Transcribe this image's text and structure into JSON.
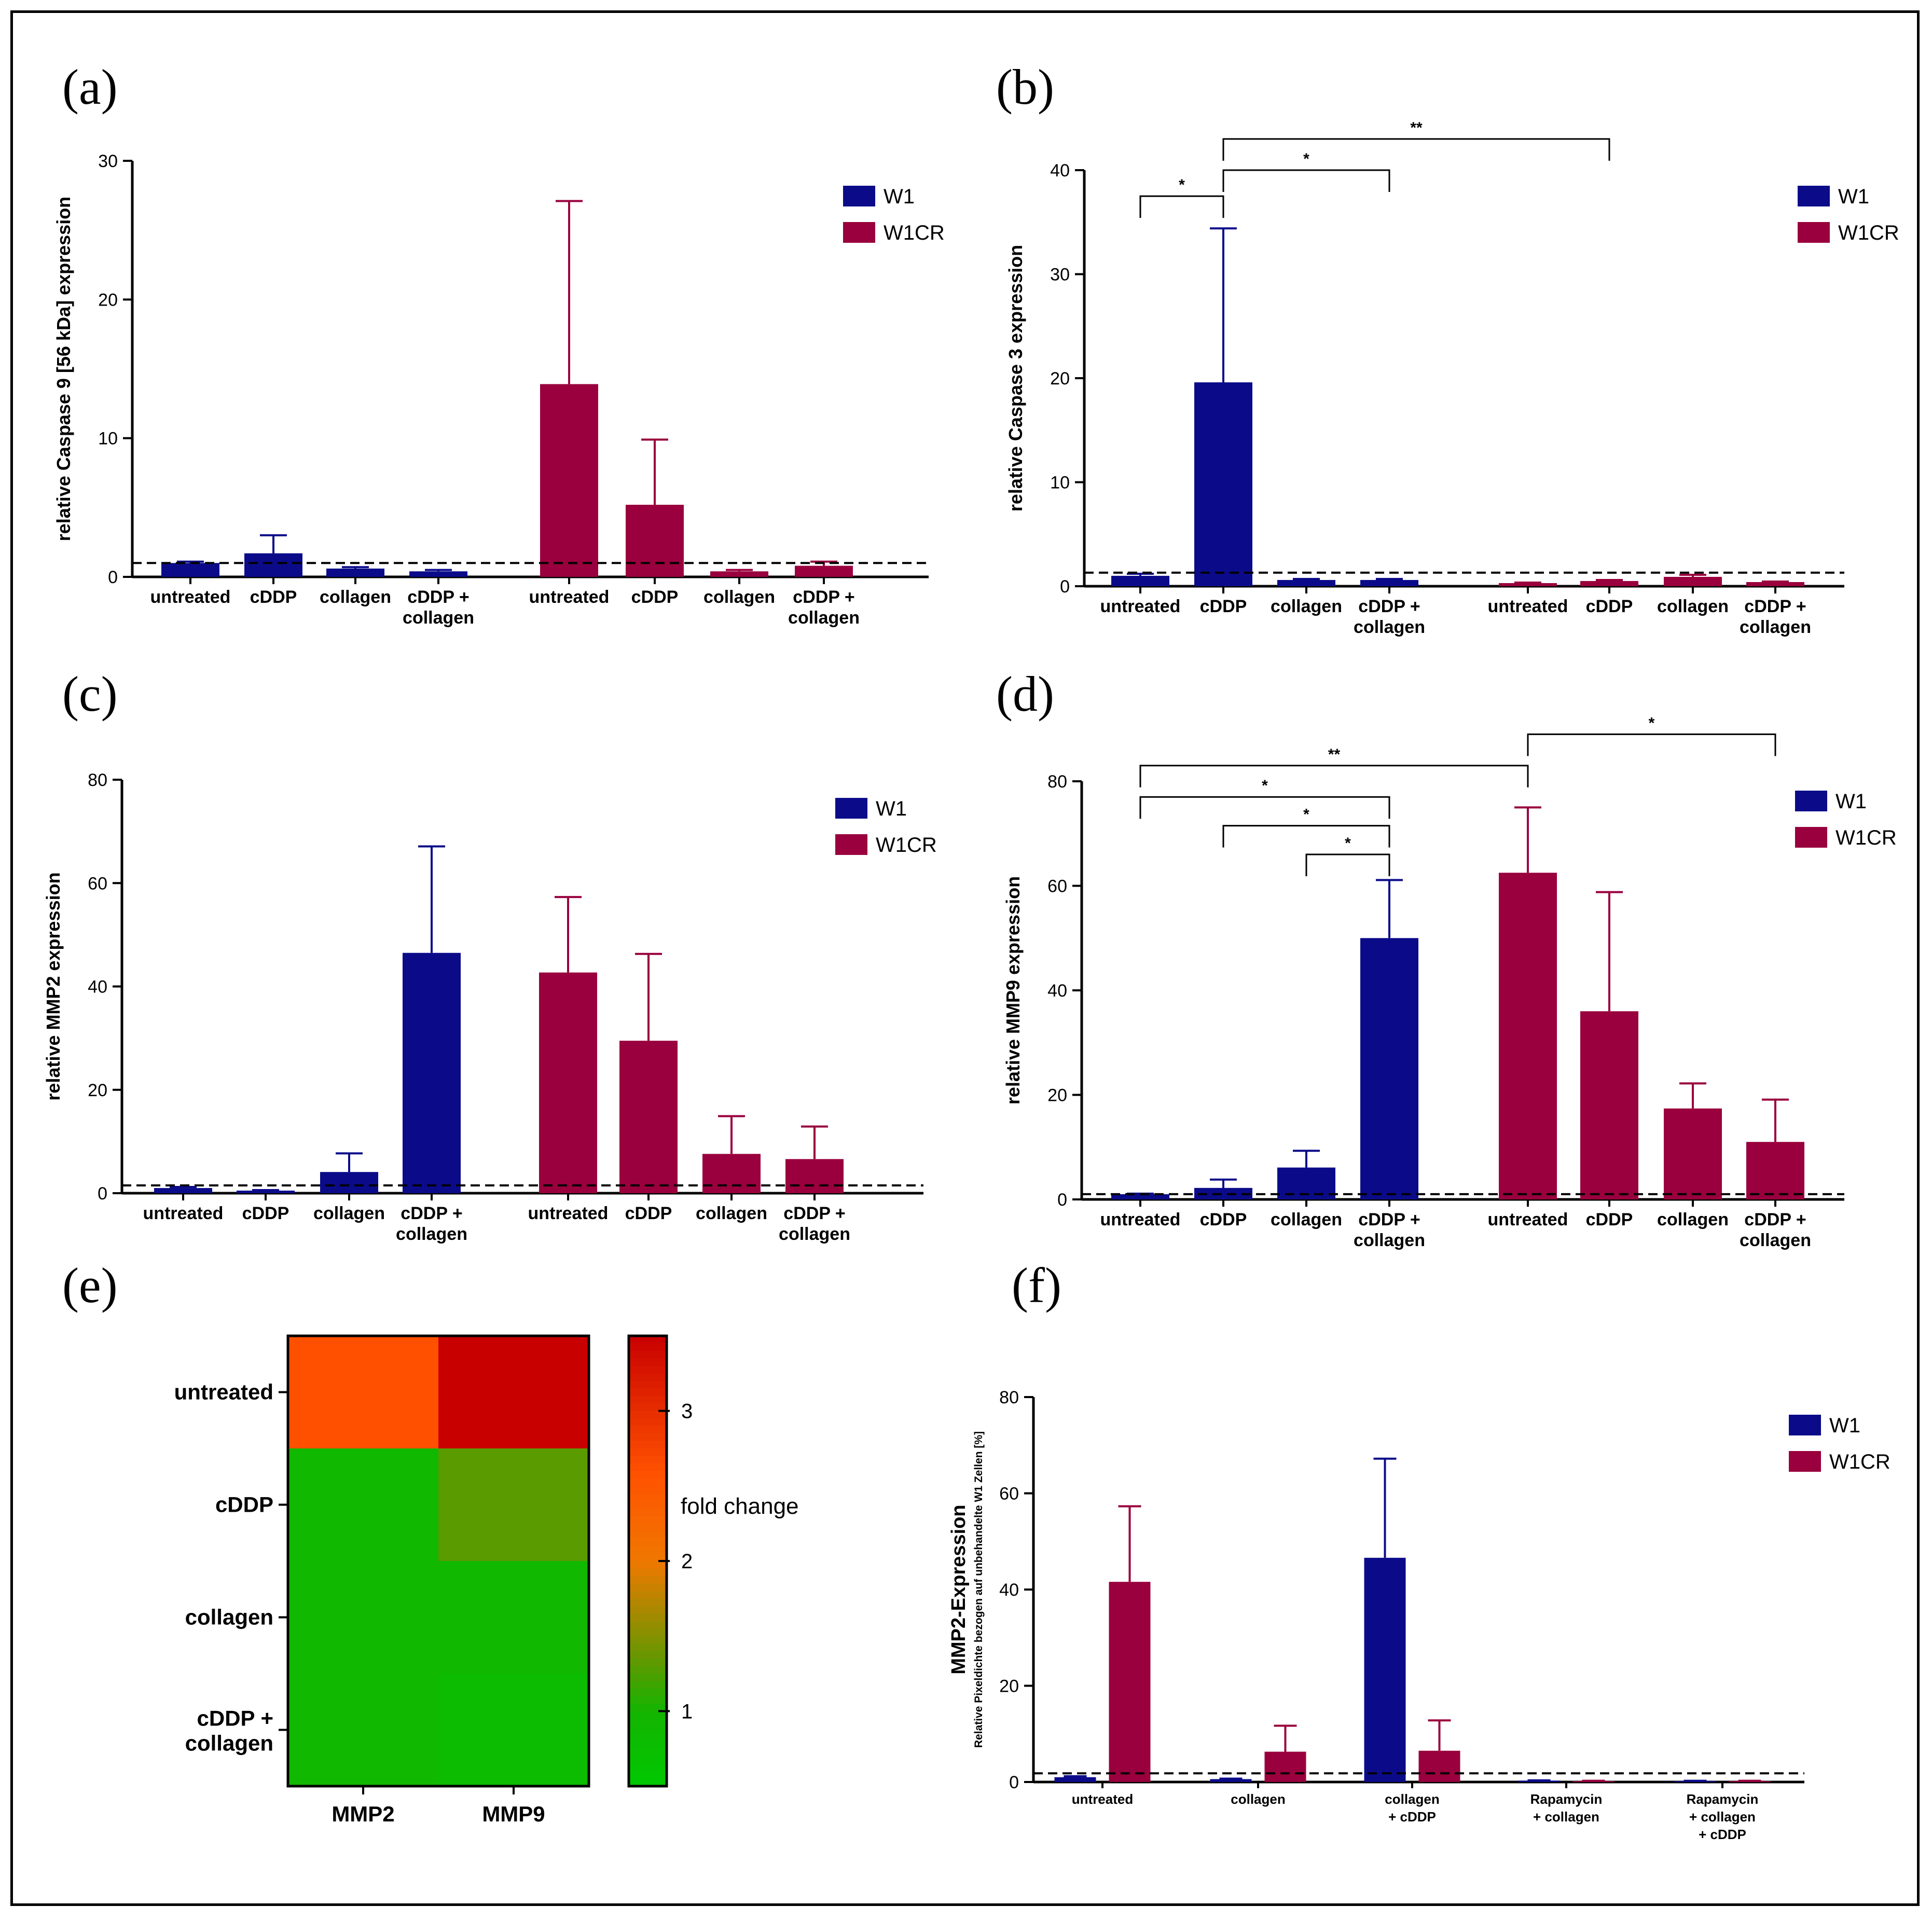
{
  "colors": {
    "W1": "#0b0b8a",
    "W1CR": "#99003d",
    "axis": "#000000"
  },
  "chart_data": [
    {
      "id": "a",
      "type": "bar",
      "panel_label": "(a)",
      "ylabel": "relative Caspase 9 [56 kDa] expression",
      "ylim": [
        0,
        30
      ],
      "yticks": [
        0,
        10,
        20,
        30
      ],
      "reference_line": 1,
      "legend": [
        "W1",
        "W1CR"
      ],
      "categories": [
        "untreated",
        "cDDP",
        "collagen",
        "cDDP +\ncollagen",
        "untreated",
        "cDDP",
        "collagen",
        "cDDP +\ncollagen"
      ],
      "series_of_bar": [
        "W1",
        "W1",
        "W1",
        "W1",
        "W1CR",
        "W1CR",
        "W1CR",
        "W1CR"
      ],
      "values": [
        1.0,
        1.7,
        0.6,
        0.4,
        13.9,
        5.2,
        0.4,
        0.8
      ],
      "errors": [
        0.1,
        1.3,
        0.1,
        0.1,
        13.2,
        4.7,
        0.1,
        0.3
      ],
      "significance": []
    },
    {
      "id": "b",
      "type": "bar",
      "panel_label": "(b)",
      "ylabel": "relative Caspase 3 expression",
      "ylim": [
        0,
        40
      ],
      "yticks": [
        0,
        10,
        20,
        30,
        40
      ],
      "reference_line": 1.3,
      "legend": [
        "W1",
        "W1CR"
      ],
      "categories": [
        "untreated",
        "cDDP",
        "collagen",
        "cDDP +\ncollagen",
        "untreated",
        "cDDP",
        "collagen",
        "cDDP +\ncollagen"
      ],
      "series_of_bar": [
        "W1",
        "W1",
        "W1",
        "W1",
        "W1CR",
        "W1CR",
        "W1CR",
        "W1CR"
      ],
      "values": [
        1.0,
        19.6,
        0.6,
        0.6,
        0.3,
        0.5,
        0.9,
        0.4
      ],
      "errors": [
        0.2,
        14.8,
        0.1,
        0.1,
        0.05,
        0.1,
        0.2,
        0.05
      ],
      "significance": [
        {
          "from": 0,
          "to": 1,
          "label": "*",
          "y": 37.5
        },
        {
          "from": 1,
          "to": 3,
          "label": "*",
          "y": 40
        },
        {
          "from": 1,
          "to": 5,
          "label": "**",
          "y": 43
        }
      ]
    },
    {
      "id": "c",
      "type": "bar",
      "panel_label": "(c)",
      "ylabel": "relative MMP2 expression",
      "ylim": [
        0,
        80
      ],
      "yticks": [
        0,
        20,
        40,
        60,
        80
      ],
      "reference_line": 1.5,
      "legend": [
        "W1",
        "W1CR"
      ],
      "categories": [
        "untreated",
        "cDDP",
        "collagen",
        "cDDP +\ncollagen",
        "untreated",
        "cDDP",
        "collagen",
        "cDDP +\ncollagen"
      ],
      "series_of_bar": [
        "W1",
        "W1",
        "W1",
        "W1",
        "W1CR",
        "W1CR",
        "W1CR",
        "W1CR"
      ],
      "values": [
        1.0,
        0.5,
        4.1,
        46.5,
        42.7,
        29.5,
        7.6,
        6.6
      ],
      "errors": [
        0.2,
        0.1,
        3.6,
        20.6,
        14.6,
        16.8,
        7.3,
        6.3
      ],
      "significance": []
    },
    {
      "id": "d",
      "type": "bar",
      "panel_label": "(d)",
      "ylabel": "relative MMP9 expression",
      "ylim": [
        0,
        80
      ],
      "yticks": [
        0,
        20,
        40,
        60,
        80
      ],
      "reference_line": 1,
      "legend": [
        "W1",
        "W1CR"
      ],
      "categories": [
        "untreated",
        "cDDP",
        "collagen",
        "cDDP +\ncollagen",
        "untreated",
        "cDDP",
        "collagen",
        "cDDP +\ncollagen"
      ],
      "series_of_bar": [
        "W1",
        "W1",
        "W1",
        "W1",
        "W1CR",
        "W1CR",
        "W1CR",
        "W1CR"
      ],
      "values": [
        1.0,
        2.2,
        6.1,
        50.0,
        62.5,
        36.0,
        17.4,
        11.0
      ],
      "errors": [
        0.1,
        1.6,
        3.2,
        11.1,
        12.5,
        22.8,
        4.8,
        8.1
      ],
      "significance": [
        {
          "from": 2,
          "to": 3,
          "label": "*",
          "y": 66
        },
        {
          "from": 1,
          "to": 3,
          "label": "*",
          "y": 71.5
        },
        {
          "from": 0,
          "to": 3,
          "label": "*",
          "y": 77
        },
        {
          "from": 0,
          "to": 4,
          "label": "**",
          "y": 83
        },
        {
          "from": 4,
          "to": 7,
          "label": "*",
          "y": 89
        }
      ]
    },
    {
      "id": "e",
      "type": "heatmap",
      "panel_label": "(e)",
      "rows": [
        "untreated",
        "cDDP",
        "collagen",
        "cDDP +\ncollagen"
      ],
      "columns": [
        "MMP2",
        "MMP9"
      ],
      "values": [
        [
          2.6,
          3.5
        ],
        [
          0.9,
          1.3
        ],
        [
          0.9,
          0.9
        ],
        [
          0.9,
          0.8
        ]
      ],
      "colorbar_label": "fold change",
      "colorbar_ticks": [
        1,
        2,
        3
      ],
      "colorbar_range": [
        0.5,
        3.5
      ]
    },
    {
      "id": "f",
      "type": "bar",
      "panel_label": "(f)",
      "ylabel": "MMP2-Expression",
      "ylabel_sub": "Relative Pixeldichte bezogen auf unbehandelte W1 Zellen [%]",
      "ylim": [
        0,
        80
      ],
      "yticks": [
        0,
        20,
        40,
        60,
        80
      ],
      "reference_line": 1.8,
      "legend": [
        "W1",
        "W1CR"
      ],
      "groups": [
        "untreated",
        "collagen",
        "collagen\n+ cDDP",
        "Rapamycin\n+ collagen",
        "Rapamycin\n+ collagen\n+ cDDP"
      ],
      "series": [
        {
          "name": "W1",
          "values": [
            1.0,
            0.6,
            46.6,
            0.3,
            0.2
          ],
          "errors": [
            0.2,
            0.1,
            20.6,
            0.05,
            0.05
          ]
        },
        {
          "name": "W1CR",
          "values": [
            41.6,
            6.3,
            6.5,
            0.2,
            0.2
          ],
          "errors": [
            15.7,
            5.4,
            6.3,
            0.05,
            0.05
          ]
        }
      ]
    }
  ]
}
